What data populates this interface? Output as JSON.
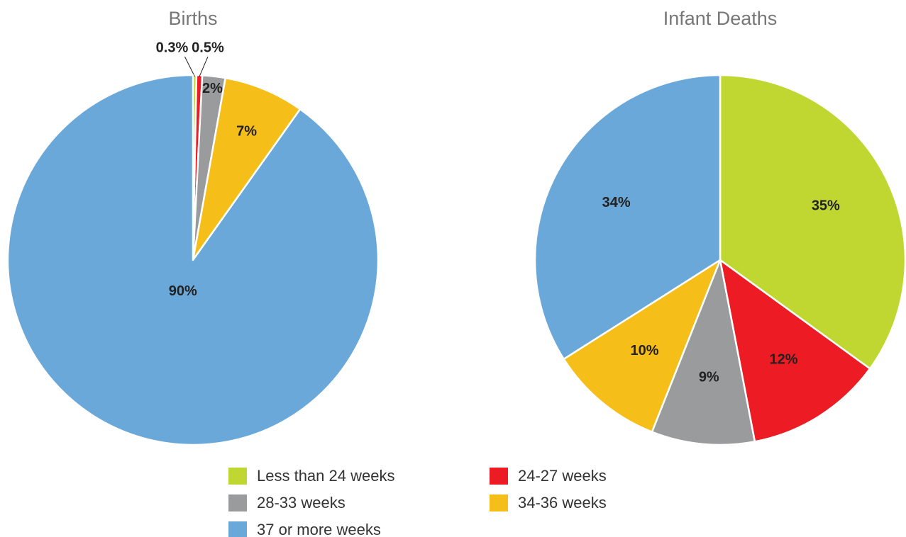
{
  "chart_data": [
    {
      "type": "pie",
      "title": "Births",
      "values": [
        0.3,
        0.5,
        2,
        7,
        90
      ],
      "value_labels": [
        "0.3%",
        "0.5%",
        "2%",
        "7%",
        "90%"
      ]
    },
    {
      "type": "pie",
      "title": "Infant Deaths",
      "values": [
        35,
        12,
        9,
        10,
        34
      ],
      "value_labels": [
        "35%",
        "12%",
        "9%",
        "10%",
        "34%"
      ]
    }
  ],
  "legend": {
    "categories": [
      "Less than 24 weeks",
      "24-27 weeks",
      "28-33 weeks",
      "34-36 weeks",
      "37 or more weeks"
    ],
    "colors": [
      "#bfd730",
      "#ed1c24",
      "#9a9b9d",
      "#f6be18",
      "#6aa8d9"
    ]
  }
}
